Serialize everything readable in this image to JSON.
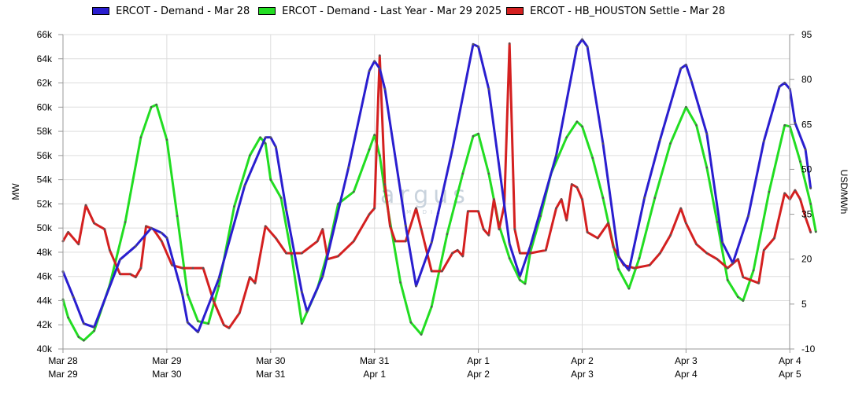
{
  "colors": {
    "demand": "#2a1ecf",
    "last_year": "#22dd22",
    "settle": "#d42020",
    "grid": "#dddddd",
    "axis": "#999999"
  },
  "legend": [
    {
      "label": "ERCOT - Demand - Mar 28",
      "color": "#2a1ecf"
    },
    {
      "label": "ERCOT - Demand - Last Year - Mar 29 2025",
      "color": "#22dd22"
    },
    {
      "label": "ERCOT - HB_HOUSTON Settle - Mar 28",
      "color": "#d42020"
    }
  ],
  "watermark": {
    "main": "argus",
    "sub": "MEDIA"
  },
  "chart_data": {
    "type": "line",
    "xlabels_top": [
      "Mar 28",
      "Mar 29",
      "Mar 30",
      "Mar 31",
      "Apr 1",
      "Apr 2",
      "Apr 3",
      "Apr 4"
    ],
    "xlabels_bottom": [
      "Mar 29",
      "Mar 30",
      "Mar 31",
      "Apr 1",
      "Apr 2",
      "Apr 3",
      "Apr 4",
      "Apr 5"
    ],
    "xlim": [
      0,
      7
    ],
    "y_left": {
      "label": "MW",
      "ylim": [
        40000,
        66000
      ],
      "ticks": [
        40000,
        42000,
        44000,
        46000,
        48000,
        50000,
        52000,
        54000,
        56000,
        58000,
        60000,
        62000,
        64000,
        66000
      ],
      "tick_labels": [
        "40k",
        "42k",
        "44k",
        "46k",
        "48k",
        "50k",
        "52k",
        "54k",
        "56k",
        "58k",
        "60k",
        "62k",
        "64k",
        "66k"
      ]
    },
    "y_right": {
      "label": "USD/MWh",
      "ylim": [
        -10,
        95
      ],
      "ticks": [
        -10,
        5,
        20,
        35,
        50,
        65,
        80,
        95
      ],
      "tick_labels": [
        "-10",
        "5",
        "20",
        "35",
        "50",
        "65",
        "80",
        "95"
      ]
    },
    "grid": true,
    "legend_position": "top",
    "series": [
      {
        "name": "ERCOT - Demand - Mar 28",
        "axis": "left",
        "points": [
          [
            0.0,
            46400
          ],
          [
            0.1,
            44300
          ],
          [
            0.2,
            42100
          ],
          [
            0.3,
            41800
          ],
          [
            0.55,
            47400
          ],
          [
            0.7,
            48500
          ],
          [
            0.85,
            50000
          ],
          [
            0.95,
            49600
          ],
          [
            1.0,
            49200
          ],
          [
            1.15,
            44500
          ],
          [
            1.2,
            42200
          ],
          [
            1.3,
            41400
          ],
          [
            1.5,
            45800
          ],
          [
            1.75,
            53500
          ],
          [
            1.95,
            57500
          ],
          [
            2.0,
            57500
          ],
          [
            2.05,
            56700
          ],
          [
            2.15,
            51500
          ],
          [
            2.3,
            44700
          ],
          [
            2.35,
            43100
          ],
          [
            2.5,
            46000
          ],
          [
            2.75,
            55000
          ],
          [
            2.95,
            63000
          ],
          [
            3.0,
            63800
          ],
          [
            3.05,
            63200
          ],
          [
            3.1,
            61500
          ],
          [
            3.3,
            50200
          ],
          [
            3.4,
            45200
          ],
          [
            3.55,
            48800
          ],
          [
            3.75,
            56500
          ],
          [
            3.95,
            65200
          ],
          [
            4.0,
            65000
          ],
          [
            4.1,
            61500
          ],
          [
            4.3,
            48700
          ],
          [
            4.4,
            46000
          ],
          [
            4.5,
            48500
          ],
          [
            4.75,
            56000
          ],
          [
            4.95,
            65000
          ],
          [
            5.0,
            65600
          ],
          [
            5.05,
            65000
          ],
          [
            5.2,
            57000
          ],
          [
            5.35,
            47600
          ],
          [
            5.45,
            46500
          ],
          [
            5.6,
            52500
          ],
          [
            5.75,
            57300
          ],
          [
            5.95,
            63200
          ],
          [
            6.0,
            63500
          ],
          [
            6.05,
            62200
          ],
          [
            6.2,
            57800
          ],
          [
            6.35,
            48800
          ],
          [
            6.45,
            47100
          ],
          [
            6.6,
            51000
          ],
          [
            6.75,
            57200
          ],
          [
            6.9,
            61700
          ],
          [
            6.95,
            62000
          ],
          [
            7.0,
            61500
          ],
          [
            7.05,
            58700
          ],
          [
            7.15,
            56500
          ],
          [
            7.2,
            53300
          ]
        ]
      },
      {
        "name": "ERCOT - Demand - Last Year - Mar 29 2025",
        "axis": "left",
        "points": [
          [
            0.0,
            44100
          ],
          [
            0.05,
            42600
          ],
          [
            0.15,
            41000
          ],
          [
            0.2,
            40700
          ],
          [
            0.3,
            41500
          ],
          [
            0.45,
            45300
          ],
          [
            0.6,
            50500
          ],
          [
            0.75,
            57500
          ],
          [
            0.85,
            60000
          ],
          [
            0.9,
            60200
          ],
          [
            1.0,
            57300
          ],
          [
            1.1,
            51000
          ],
          [
            1.2,
            44500
          ],
          [
            1.3,
            42300
          ],
          [
            1.4,
            42100
          ],
          [
            1.5,
            45200
          ],
          [
            1.65,
            51800
          ],
          [
            1.8,
            56000
          ],
          [
            1.9,
            57500
          ],
          [
            1.95,
            57000
          ],
          [
            2.0,
            54000
          ],
          [
            2.1,
            52500
          ],
          [
            2.2,
            47800
          ],
          [
            2.3,
            42100
          ],
          [
            2.45,
            45000
          ],
          [
            2.55,
            48000
          ],
          [
            2.65,
            52000
          ],
          [
            2.8,
            53000
          ],
          [
            2.95,
            56500
          ],
          [
            3.0,
            57700
          ],
          [
            3.05,
            56000
          ],
          [
            3.1,
            53000
          ],
          [
            3.25,
            45500
          ],
          [
            3.35,
            42200
          ],
          [
            3.45,
            41200
          ],
          [
            3.55,
            43500
          ],
          [
            3.7,
            49500
          ],
          [
            3.85,
            54500
          ],
          [
            3.95,
            57600
          ],
          [
            4.0,
            57800
          ],
          [
            4.1,
            54500
          ],
          [
            4.2,
            50200
          ],
          [
            4.3,
            47500
          ],
          [
            4.4,
            45700
          ],
          [
            4.45,
            45400
          ],
          [
            4.5,
            48000
          ],
          [
            4.6,
            51000
          ],
          [
            4.7,
            54500
          ],
          [
            4.85,
            57500
          ],
          [
            4.95,
            58800
          ],
          [
            5.0,
            58400
          ],
          [
            5.1,
            55800
          ],
          [
            5.2,
            52500
          ],
          [
            5.35,
            46600
          ],
          [
            5.45,
            45000
          ],
          [
            5.55,
            47500
          ],
          [
            5.7,
            52500
          ],
          [
            5.85,
            57000
          ],
          [
            6.0,
            60000
          ],
          [
            6.1,
            58500
          ],
          [
            6.2,
            55000
          ],
          [
            6.3,
            50500
          ],
          [
            6.4,
            45700
          ],
          [
            6.5,
            44300
          ],
          [
            6.55,
            44000
          ],
          [
            6.65,
            46500
          ],
          [
            6.8,
            53000
          ],
          [
            6.95,
            58500
          ],
          [
            7.0,
            58400
          ],
          [
            7.1,
            55500
          ],
          [
            7.2,
            52000
          ],
          [
            7.25,
            49700
          ]
        ]
      },
      {
        "name": "ERCOT - HB_HOUSTON Settle - Mar 28",
        "axis": "right",
        "points": [
          [
            0.0,
            26
          ],
          [
            0.05,
            29
          ],
          [
            0.15,
            25
          ],
          [
            0.22,
            38
          ],
          [
            0.3,
            32
          ],
          [
            0.4,
            30
          ],
          [
            0.45,
            23
          ],
          [
            0.55,
            15
          ],
          [
            0.65,
            15
          ],
          [
            0.7,
            14
          ],
          [
            0.75,
            17
          ],
          [
            0.8,
            31
          ],
          [
            0.87,
            30
          ],
          [
            0.95,
            26
          ],
          [
            1.05,
            18
          ],
          [
            1.15,
            17
          ],
          [
            1.25,
            17
          ],
          [
            1.35,
            17
          ],
          [
            1.45,
            6
          ],
          [
            1.55,
            -2
          ],
          [
            1.6,
            -3
          ],
          [
            1.7,
            2
          ],
          [
            1.8,
            14
          ],
          [
            1.85,
            12
          ],
          [
            1.95,
            31
          ],
          [
            2.05,
            27
          ],
          [
            2.15,
            22
          ],
          [
            2.3,
            22
          ],
          [
            2.45,
            26
          ],
          [
            2.5,
            30
          ],
          [
            2.55,
            20
          ],
          [
            2.65,
            21
          ],
          [
            2.8,
            26
          ],
          [
            2.95,
            35
          ],
          [
            3.0,
            37
          ],
          [
            3.05,
            88
          ],
          [
            3.1,
            45
          ],
          [
            3.15,
            31
          ],
          [
            3.2,
            26
          ],
          [
            3.3,
            26
          ],
          [
            3.4,
            37
          ],
          [
            3.45,
            30
          ],
          [
            3.55,
            16
          ],
          [
            3.65,
            16
          ],
          [
            3.75,
            22
          ],
          [
            3.8,
            23
          ],
          [
            3.85,
            21
          ],
          [
            3.9,
            36
          ],
          [
            4.0,
            36
          ],
          [
            4.05,
            30
          ],
          [
            4.1,
            28
          ],
          [
            4.15,
            40
          ],
          [
            4.2,
            30
          ],
          [
            4.25,
            38
          ],
          [
            4.3,
            92
          ],
          [
            4.35,
            30
          ],
          [
            4.4,
            22
          ],
          [
            4.5,
            22
          ],
          [
            4.65,
            23
          ],
          [
            4.75,
            37
          ],
          [
            4.8,
            40
          ],
          [
            4.85,
            33
          ],
          [
            4.9,
            45
          ],
          [
            4.95,
            44
          ],
          [
            5.0,
            40
          ],
          [
            5.05,
            29
          ],
          [
            5.15,
            27
          ],
          [
            5.25,
            32
          ],
          [
            5.3,
            24
          ],
          [
            5.4,
            18
          ],
          [
            5.5,
            17
          ],
          [
            5.65,
            18
          ],
          [
            5.75,
            22
          ],
          [
            5.85,
            28
          ],
          [
            5.95,
            37
          ],
          [
            6.0,
            32
          ],
          [
            6.1,
            25
          ],
          [
            6.2,
            22
          ],
          [
            6.3,
            20
          ],
          [
            6.4,
            17
          ],
          [
            6.5,
            20
          ],
          [
            6.55,
            14
          ],
          [
            6.7,
            12
          ],
          [
            6.75,
            23
          ],
          [
            6.85,
            27
          ],
          [
            6.95,
            42
          ],
          [
            7.0,
            40
          ],
          [
            7.05,
            43
          ],
          [
            7.1,
            40
          ],
          [
            7.15,
            34
          ],
          [
            7.2,
            29
          ]
        ]
      }
    ]
  }
}
